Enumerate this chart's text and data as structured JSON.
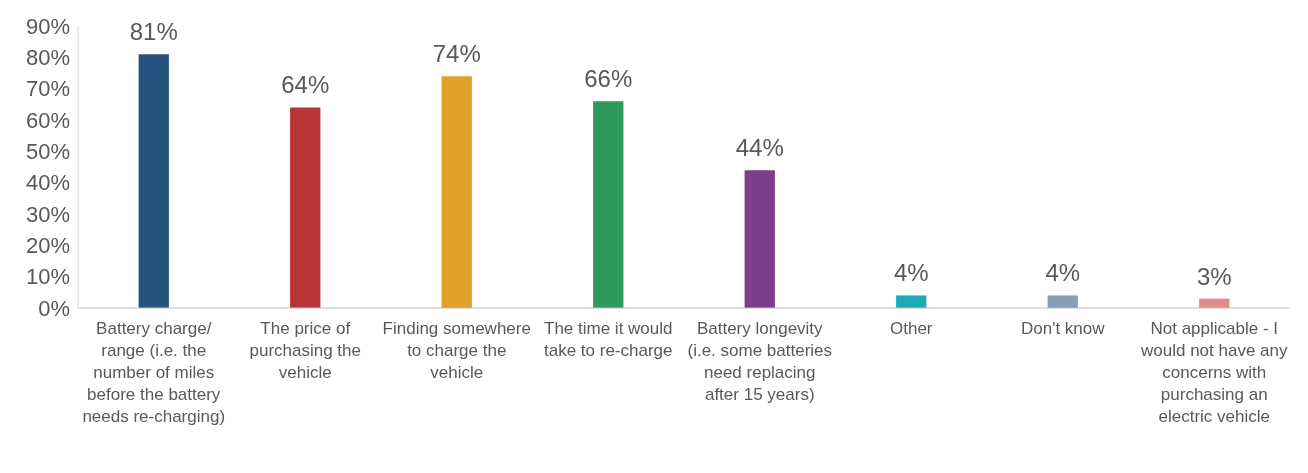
{
  "chart_data": {
    "type": "bar",
    "categories": [
      "Battery charge/ range (i.e. the number of miles before the battery needs re-charging)",
      "The price of purchasing the vehicle",
      "Finding somewhere to charge the vehicle",
      "The time it would take to re-charge",
      "Battery longevity (i.e. some batteries need replacing after 15 years)",
      "Other",
      "Don't know",
      "Not applicable - I would not have any concerns with purchasing an electric vehicle"
    ],
    "values": [
      81,
      64,
      74,
      66,
      44,
      4,
      4,
      3
    ],
    "colors": [
      "#26547f",
      "#b83437",
      "#e0a126",
      "#2e9a5e",
      "#7b3e8a",
      "#1eaab5",
      "#8a9cb8",
      "#e48a8a"
    ],
    "value_labels": [
      "81%",
      "64%",
      "74%",
      "66%",
      "44%",
      "4%",
      "4%",
      "3%"
    ],
    "ylim": [
      0,
      90
    ],
    "yticks": [
      {
        "value": 0,
        "label": "0%"
      },
      {
        "value": 10,
        "label": "10%"
      },
      {
        "value": 20,
        "label": "20%"
      },
      {
        "value": 30,
        "label": "30%"
      },
      {
        "value": 40,
        "label": "40%"
      },
      {
        "value": 50,
        "label": "50%"
      },
      {
        "value": 60,
        "label": "60%"
      },
      {
        "value": 70,
        "label": "70%"
      },
      {
        "value": 80,
        "label": "80%"
      },
      {
        "value": 90,
        "label": "90%"
      }
    ],
    "grid": false,
    "legend": false
  }
}
